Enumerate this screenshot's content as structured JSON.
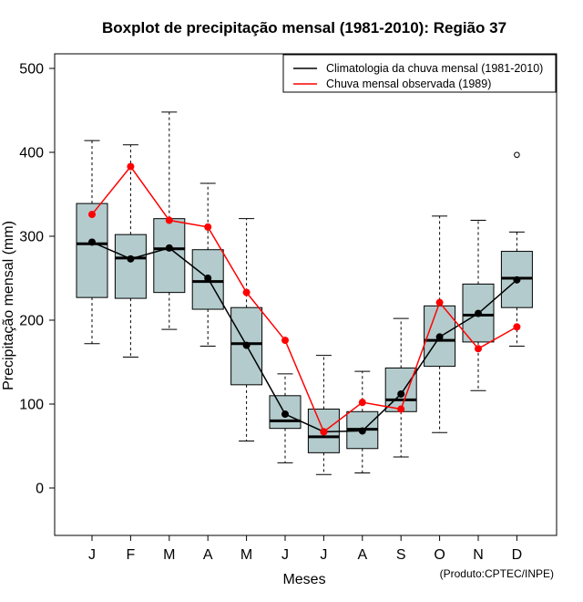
{
  "chart_data": {
    "type": "boxplot",
    "title": "Boxplot de precipitação mensal (1981-2010): Região 37",
    "xlabel": "Meses",
    "ylabel": "Precipitação mensal (mm)",
    "ylim": [
      -55,
      530
    ],
    "yticks": [
      0,
      100,
      200,
      300,
      400,
      500
    ],
    "categories": [
      "J",
      "F",
      "M",
      "A",
      "M",
      "J",
      "J",
      "A",
      "S",
      "O",
      "N",
      "D"
    ],
    "boxes": [
      {
        "whisker_low": 172,
        "q1": 227,
        "median": 291,
        "q3": 339,
        "whisker_high": 414,
        "outliers": []
      },
      {
        "whisker_low": 156,
        "q1": 226,
        "median": 274,
        "q3": 302,
        "whisker_high": 409,
        "outliers": []
      },
      {
        "whisker_low": 189,
        "q1": 233,
        "median": 285,
        "q3": 321,
        "whisker_high": 448,
        "outliers": []
      },
      {
        "whisker_low": 169,
        "q1": 213,
        "median": 246,
        "q3": 284,
        "whisker_high": 363,
        "outliers": []
      },
      {
        "whisker_low": 56,
        "q1": 123,
        "median": 172,
        "q3": 215,
        "whisker_high": 321,
        "outliers": []
      },
      {
        "whisker_low": 30,
        "q1": 71,
        "median": 80,
        "q3": 110,
        "whisker_high": 136,
        "outliers": []
      },
      {
        "whisker_low": 16,
        "q1": 42,
        "median": 61,
        "q3": 94,
        "whisker_high": 158,
        "outliers": []
      },
      {
        "whisker_low": 18,
        "q1": 47,
        "median": 70,
        "q3": 91,
        "whisker_high": 139,
        "outliers": []
      },
      {
        "whisker_low": 37,
        "q1": 91,
        "median": 105,
        "q3": 143,
        "whisker_high": 202,
        "outliers": []
      },
      {
        "whisker_low": 66,
        "q1": 145,
        "median": 176,
        "q3": 217,
        "whisker_high": 324,
        "outliers": []
      },
      {
        "whisker_low": 116,
        "q1": 174,
        "median": 206,
        "q3": 243,
        "whisker_high": 319,
        "outliers": []
      },
      {
        "whisker_low": 169,
        "q1": 215,
        "median": 250,
        "q3": 282,
        "whisker_high": 305,
        "outliers": [
          397
        ]
      }
    ],
    "series": [
      {
        "name": "Climatologia da chuva mensal (1981-2010)",
        "color": "#000000",
        "values": [
          293,
          273,
          286,
          250,
          170,
          88,
          67,
          68,
          112,
          180,
          208,
          248
        ]
      },
      {
        "name": "Chuva mensal observada (1989)",
        "color": "#ff0000",
        "values": [
          326,
          383,
          319,
          311,
          233,
          176,
          67,
          102,
          94,
          221,
          166,
          192
        ]
      }
    ],
    "legend_position": "top-right",
    "box_color": "#b3cbcc"
  },
  "credit": "(Produto:CPTEC/INPE)"
}
